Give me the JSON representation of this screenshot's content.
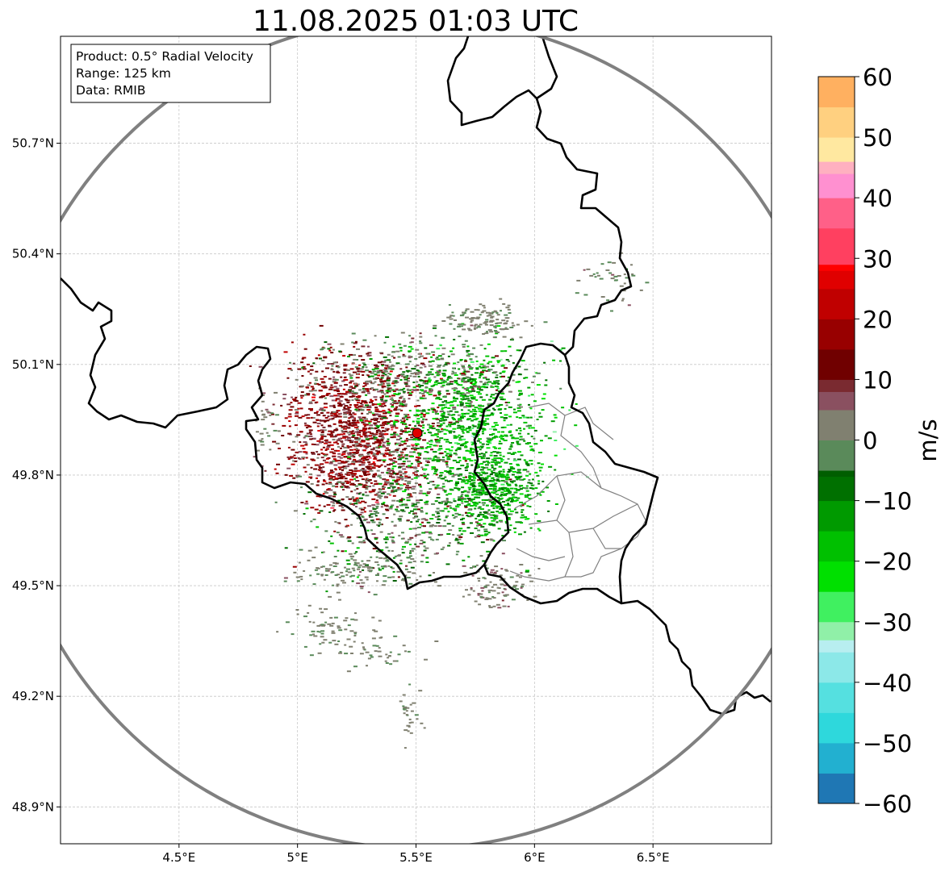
{
  "figure": {
    "title": "11.08.2025 01:03 UTC"
  },
  "info_box": {
    "product": "Product: 0.5° Radial Velocity",
    "range": "Range: 125 km",
    "data": "Data: RMIB"
  },
  "map": {
    "lon_range": [
      4.0,
      7.0
    ],
    "lat_range": [
      48.8,
      50.99
    ],
    "x_ticks": [
      {
        "value": 4.5,
        "label": "4.5°E"
      },
      {
        "value": 5.0,
        "label": "5°E"
      },
      {
        "value": 5.5,
        "label": "5.5°E"
      },
      {
        "value": 6.0,
        "label": "6°E"
      },
      {
        "value": 6.5,
        "label": "6.5°E"
      }
    ],
    "y_ticks": [
      {
        "value": 48.9,
        "label": "48.9°N"
      },
      {
        "value": 49.2,
        "label": "49.2°N"
      },
      {
        "value": 49.5,
        "label": "49.5°N"
      },
      {
        "value": 49.8,
        "label": "49.8°N"
      },
      {
        "value": 50.1,
        "label": "50.1°N"
      },
      {
        "value": 50.4,
        "label": "50.4°N"
      },
      {
        "value": 50.7,
        "label": "50.7°N"
      }
    ],
    "grid": true,
    "radar_site": {
      "lon": 5.505,
      "lat": 49.914
    },
    "range_ring_km": 125,
    "colors": {
      "range_ring": "#808080",
      "border": "#000000",
      "province_border": "#808080",
      "grid": "#c8c8c8",
      "radar_site": "#e00000"
    }
  },
  "colorbar": {
    "label": "m/s",
    "min": -60,
    "max": 60,
    "ticks": [
      {
        "value": 60,
        "label": "60"
      },
      {
        "value": 50,
        "label": "50"
      },
      {
        "value": 40,
        "label": "40"
      },
      {
        "value": 30,
        "label": "30"
      },
      {
        "value": 20,
        "label": "20"
      },
      {
        "value": 10,
        "label": "10"
      },
      {
        "value": 0,
        "label": "0"
      },
      {
        "value": -10,
        "label": "−10"
      },
      {
        "value": -20,
        "label": "−20"
      },
      {
        "value": -30,
        "label": "−30"
      },
      {
        "value": -40,
        "label": "−40"
      },
      {
        "value": -50,
        "label": "−50"
      },
      {
        "value": -60,
        "label": "−60"
      }
    ],
    "color_stops": [
      {
        "value": -60,
        "color": "#1f77b4"
      },
      {
        "value": -55,
        "color": "#22b0d0"
      },
      {
        "value": -50,
        "color": "#2ed8dc"
      },
      {
        "value": -45,
        "color": "#55e0e0"
      },
      {
        "value": -40,
        "color": "#8ce8e8"
      },
      {
        "value": -35,
        "color": "#b8eef0"
      },
      {
        "value": -33,
        "color": "#90f0a8"
      },
      {
        "value": -30,
        "color": "#40f060"
      },
      {
        "value": -25,
        "color": "#00e000"
      },
      {
        "value": -20,
        "color": "#00c000"
      },
      {
        "value": -15,
        "color": "#009a00"
      },
      {
        "value": -10,
        "color": "#007000"
      },
      {
        "value": -6,
        "color": "#005e00"
      },
      {
        "value": -5,
        "color": "#5a8a5a"
      },
      {
        "value": 0,
        "color": "#808070"
      },
      {
        "value": 5,
        "color": "#8a5060"
      },
      {
        "value": 8,
        "color": "#7a2a30"
      },
      {
        "value": 10,
        "color": "#700000"
      },
      {
        "value": 15,
        "color": "#980000"
      },
      {
        "value": 20,
        "color": "#c00000"
      },
      {
        "value": 25,
        "color": "#e00000"
      },
      {
        "value": 28,
        "color": "#ff0000"
      },
      {
        "value": 29,
        "color": "#ff4060"
      },
      {
        "value": 35,
        "color": "#ff6088"
      },
      {
        "value": 40,
        "color": "#ff90d0"
      },
      {
        "value": 44,
        "color": "#ffb0c0"
      },
      {
        "value": 46,
        "color": "#ffe8a0"
      },
      {
        "value": 50,
        "color": "#ffd080"
      },
      {
        "value": 55,
        "color": "#ffb060"
      },
      {
        "value": 60,
        "color": "#ff9a50"
      }
    ]
  }
}
